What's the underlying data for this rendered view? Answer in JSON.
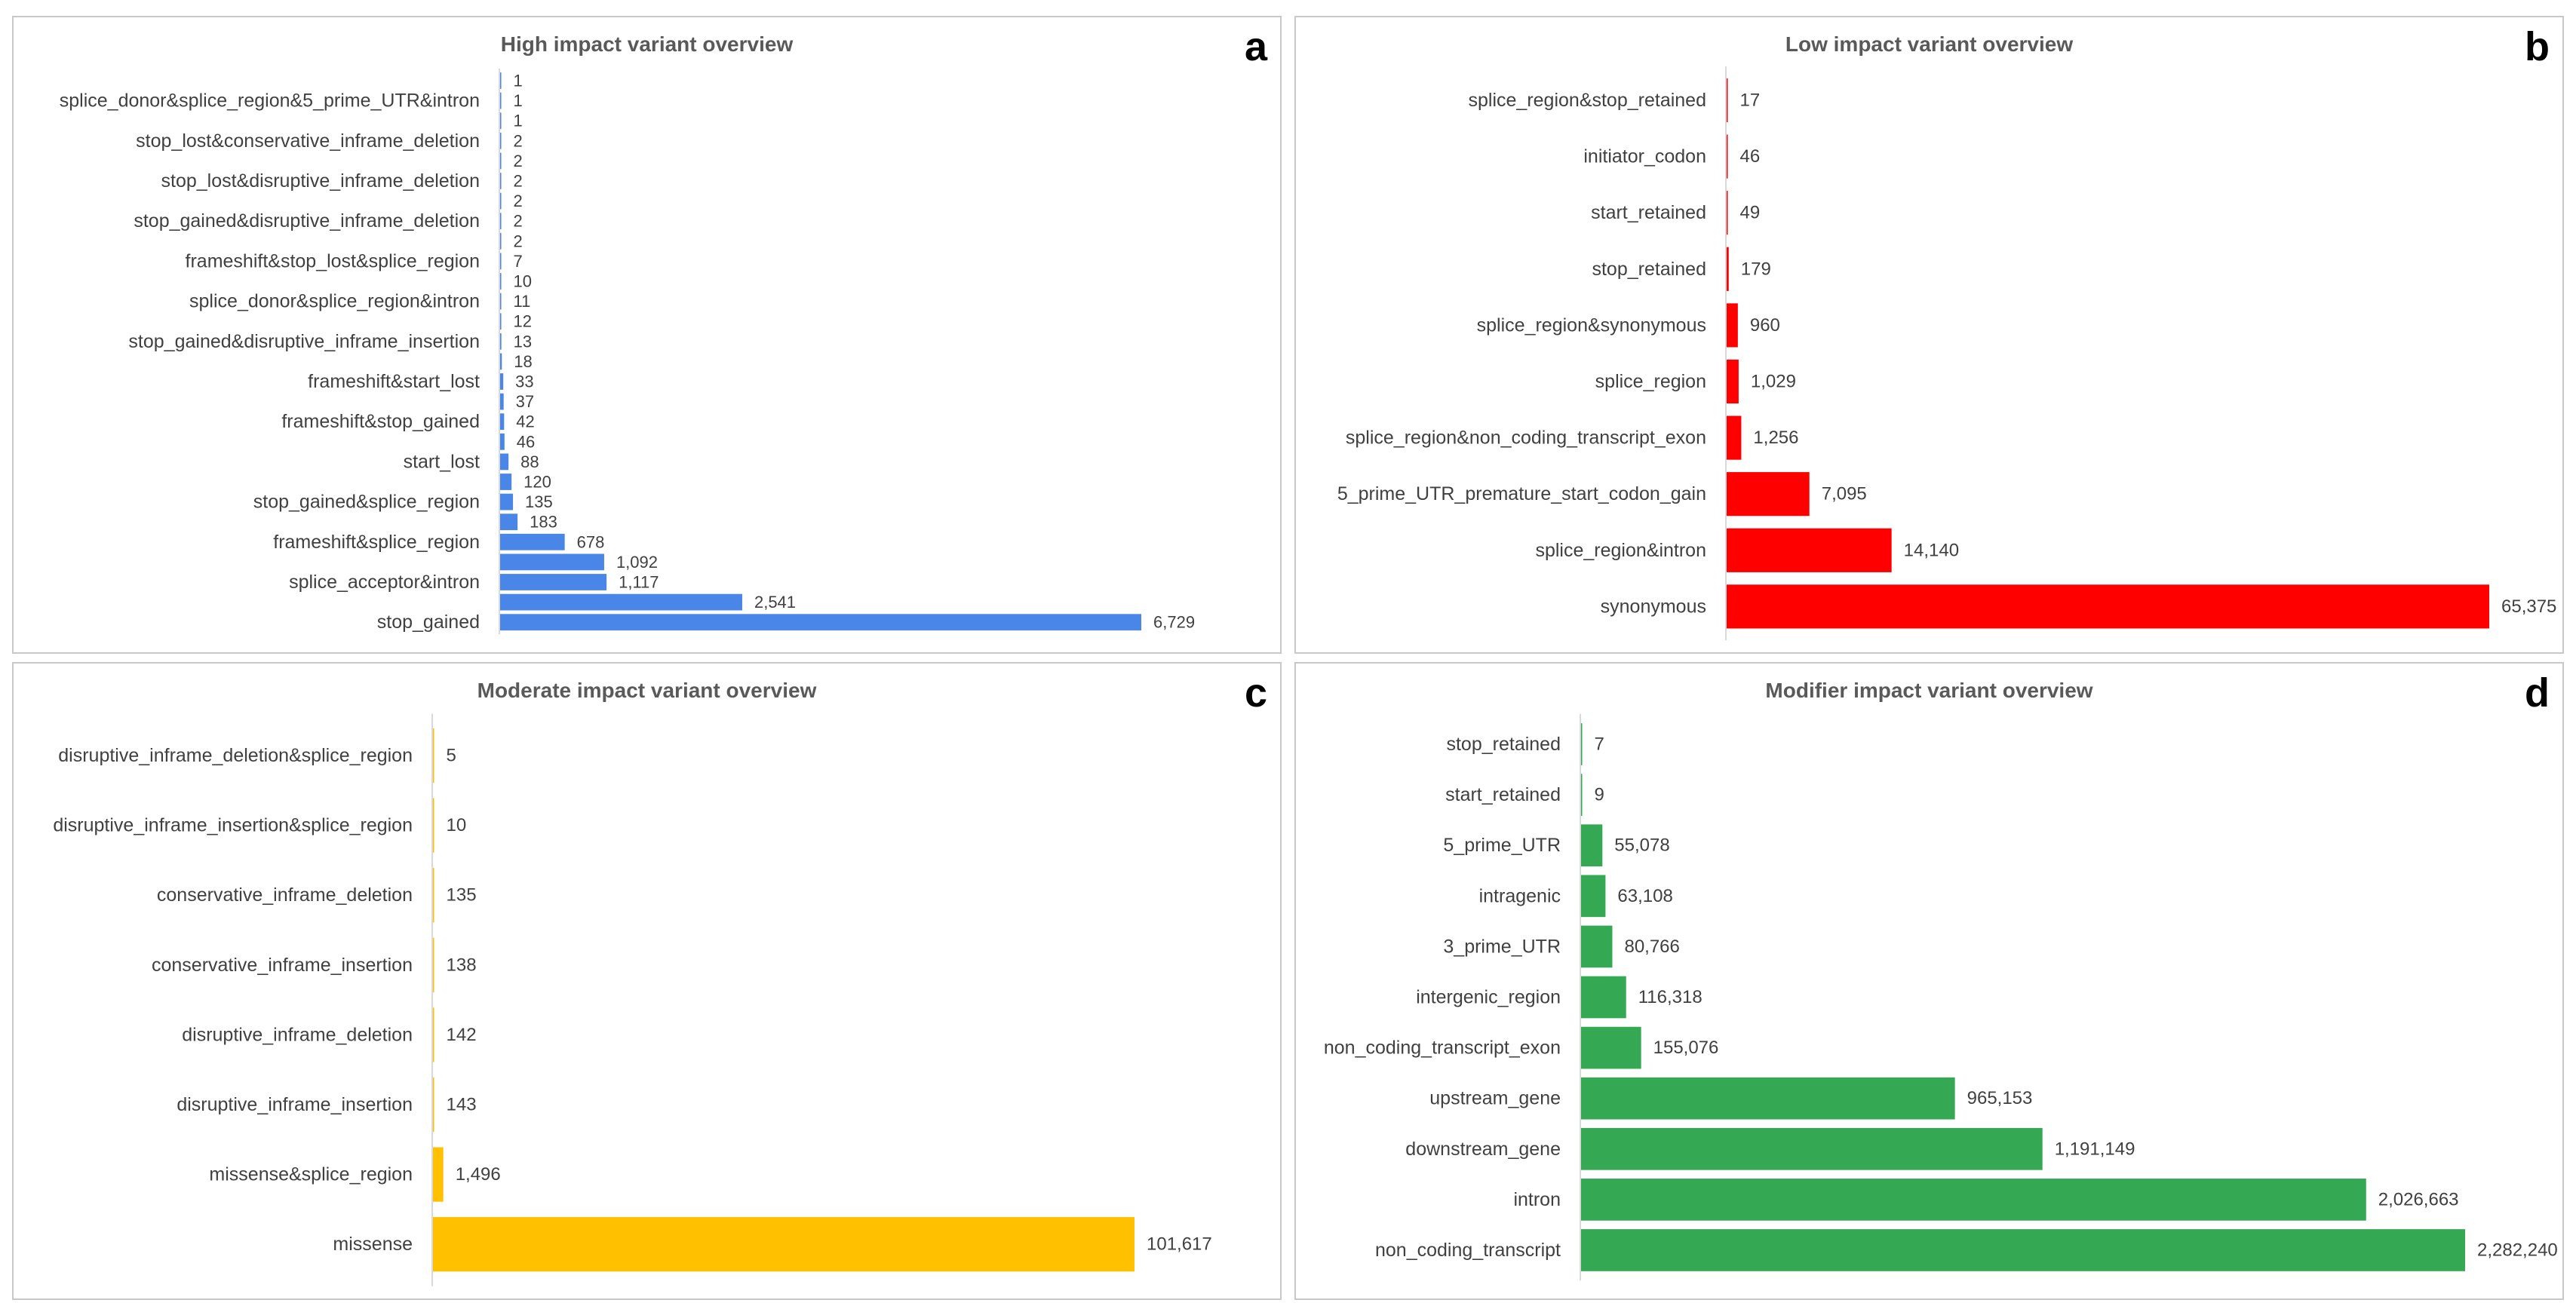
{
  "chart_data": [
    {
      "panel": "a",
      "type": "bar",
      "orientation": "horizontal",
      "title": "High impact variant overview",
      "color": "#4a86e8",
      "xlabel": "",
      "ylabel": "",
      "categories": [
        "",
        "splice_donor&splice_region&5_prime_UTR&intron",
        "",
        "stop_lost&conservative_inframe_deletion",
        "",
        "stop_lost&disruptive_inframe_deletion",
        "",
        "stop_gained&disruptive_inframe_deletion",
        "",
        "frameshift&stop_lost&splice_region",
        "",
        "splice_donor&splice_region&intron",
        "",
        "stop_gained&disruptive_inframe_insertion",
        "",
        "frameshift&start_lost",
        "",
        "frameshift&stop_gained",
        "",
        "start_lost",
        "",
        "stop_gained&splice_region",
        "",
        "frameshift&splice_region",
        "",
        "splice_acceptor&intron",
        "",
        "stop_gained"
      ],
      "values": [
        1,
        1,
        1,
        2,
        2,
        2,
        2,
        2,
        2,
        7,
        10,
        11,
        12,
        13,
        18,
        33,
        37,
        42,
        46,
        88,
        120,
        135,
        183,
        678,
        1092,
        1117,
        2541,
        6729
      ],
      "value_labels": [
        "1",
        "1",
        "1",
        "2",
        "2",
        "2",
        "2",
        "2",
        "2",
        "7",
        "10",
        "11",
        "12",
        "13",
        "18",
        "33",
        "37",
        "42",
        "46",
        "88",
        "120",
        "135",
        "183",
        "678",
        "1,092",
        "1,117",
        "2,541",
        "6,729"
      ],
      "xlim": [
        0,
        6729
      ]
    },
    {
      "panel": "b",
      "type": "bar",
      "orientation": "horizontal",
      "title": "Low impact variant overview",
      "color": "#ff0000",
      "xlabel": "",
      "ylabel": "",
      "categories": [
        "splice_region&stop_retained",
        "initiator_codon",
        "start_retained",
        "stop_retained",
        "splice_region&synonymous",
        "splice_region",
        "splice_region&non_coding_transcript_exon",
        "5_prime_UTR_premature_start_codon_gain",
        "splice_region&intron",
        "synonymous"
      ],
      "values": [
        17,
        46,
        49,
        179,
        960,
        1029,
        1256,
        7095,
        14140,
        65375
      ],
      "value_labels": [
        "17",
        "46",
        "49",
        "179",
        "960",
        "1,029",
        "1,256",
        "7,095",
        "14,140",
        "65,375"
      ],
      "xlim": [
        0,
        65375
      ]
    },
    {
      "panel": "c",
      "type": "bar",
      "orientation": "horizontal",
      "title": "Moderate impact variant overview",
      "color": "#ffc000",
      "xlabel": "",
      "ylabel": "",
      "categories": [
        "disruptive_inframe_deletion&splice_region",
        "disruptive_inframe_insertion&splice_region",
        "conservative_inframe_deletion",
        "conservative_inframe_insertion",
        "disruptive_inframe_deletion",
        "disruptive_inframe_insertion",
        "missense&splice_region",
        "missense"
      ],
      "values": [
        5,
        10,
        135,
        138,
        142,
        143,
        1496,
        101617
      ],
      "value_labels": [
        "5",
        "10",
        "135",
        "138",
        "142",
        "143",
        "1,496",
        "101,617"
      ],
      "xlim": [
        0,
        101617
      ]
    },
    {
      "panel": "d",
      "type": "bar",
      "orientation": "horizontal",
      "title": "Modifier impact variant overview",
      "color": "#34a853",
      "xlabel": "",
      "ylabel": "",
      "categories": [
        "stop_retained",
        "start_retained",
        "5_prime_UTR",
        "intragenic",
        "3_prime_UTR",
        "intergenic_region",
        "non_coding_transcript_exon",
        "upstream_gene",
        "downstream_gene",
        "intron",
        "non_coding_transcript"
      ],
      "values": [
        7,
        9,
        55078,
        63108,
        80766,
        116318,
        155076,
        965153,
        1191149,
        2026663,
        2282240
      ],
      "value_labels": [
        "7",
        "9",
        "55,078",
        "63,108",
        "80,766",
        "116,318",
        "155,076",
        "965,153",
        "1,191,149",
        "2,026,663",
        "2,282,240"
      ],
      "xlim": [
        0,
        2282240
      ]
    }
  ]
}
